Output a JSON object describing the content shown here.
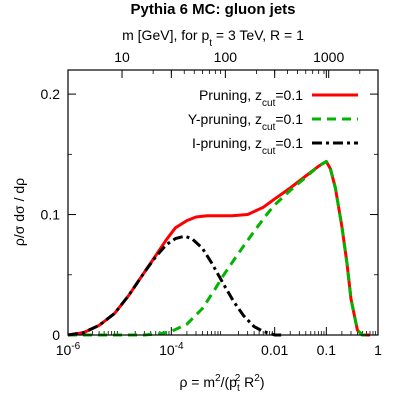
{
  "chart_data": {
    "type": "line",
    "title": "Pythia 6 MC: gluon jets",
    "top_axis_label_html": "m [GeV], for p<tspan baseline-shift=\"sub\" font-size=\"10\">t</tspan> = 3 TeV, R = 1",
    "top_axis_label": "m [GeV], for pt = 3 TeV, R = 1",
    "xlabel": "ρ = m²/(pt² R²)",
    "ylabel": "ρ/σ dσ / dρ",
    "x_scale": "log",
    "xlim": [
      1e-06,
      1
    ],
    "ylim": [
      0,
      0.22
    ],
    "x_ticks": [
      {
        "value": 1e-06,
        "label": "10",
        "exp": "-6"
      },
      {
        "value": 0.0001,
        "label": "10",
        "exp": "-4"
      },
      {
        "value": 0.01,
        "label": "0.01",
        "exp": ""
      },
      {
        "value": 0.1,
        "label": "0.1",
        "exp": ""
      },
      {
        "value": 1,
        "label": "1",
        "exp": ""
      }
    ],
    "y_ticks": [
      {
        "value": 0,
        "label": "0"
      },
      {
        "value": 0.1,
        "label": "0.1"
      },
      {
        "value": 0.2,
        "label": "0.2"
      }
    ],
    "top_ticks": [
      {
        "value": 10,
        "label": "10"
      },
      {
        "value": 100,
        "label": "100"
      },
      {
        "value": 1000,
        "label": "1000"
      }
    ],
    "legend_position": "top-right",
    "series": [
      {
        "name": "Pruning, z",
        "name_sub": "cut",
        "name_tail": "=0.1",
        "color": "#ff0000",
        "style": "solid",
        "x": [
          1e-06,
          2e-06,
          4e-06,
          8e-06,
          1.5e-05,
          3e-05,
          5e-05,
          8e-05,
          0.00012,
          0.0002,
          0.0003,
          0.0005,
          0.0008,
          0.0015,
          0.003,
          0.006,
          0.01,
          0.02,
          0.04,
          0.07,
          0.09,
          0.1,
          0.12,
          0.15,
          0.2,
          0.25,
          0.3,
          0.4,
          0.5,
          0.7
        ],
        "y": [
          0.0,
          0.002,
          0.008,
          0.018,
          0.033,
          0.052,
          0.066,
          0.079,
          0.089,
          0.095,
          0.098,
          0.099,
          0.099,
          0.099,
          0.1,
          0.106,
          0.113,
          0.122,
          0.132,
          0.14,
          0.143,
          0.144,
          0.138,
          0.122,
          0.09,
          0.06,
          0.03,
          0.004,
          0.0,
          0.0
        ]
      },
      {
        "name": "Y-pruning, z",
        "name_sub": "cut",
        "name_tail": "=0.1",
        "color": "#00b400",
        "style": "dashed",
        "x": [
          1e-06,
          1e-05,
          3e-05,
          6e-05,
          0.0001,
          0.0002,
          0.0004,
          0.0007,
          0.001,
          0.002,
          0.004,
          0.007,
          0.01,
          0.02,
          0.04,
          0.07,
          0.09,
          0.1,
          0.12,
          0.15,
          0.2,
          0.25,
          0.3,
          0.4,
          0.5,
          0.7
        ],
        "y": [
          0.0,
          0.0,
          0.0,
          0.001,
          0.003,
          0.009,
          0.022,
          0.038,
          0.049,
          0.068,
          0.086,
          0.1,
          0.108,
          0.12,
          0.131,
          0.14,
          0.143,
          0.144,
          0.138,
          0.122,
          0.09,
          0.06,
          0.03,
          0.004,
          0.0,
          0.0
        ]
      },
      {
        "name": "I-pruning, z",
        "name_sub": "cut",
        "name_tail": "=0.1",
        "color": "#000000",
        "style": "dashdot",
        "x": [
          1e-06,
          2e-06,
          4e-06,
          8e-06,
          1.5e-05,
          3e-05,
          5e-05,
          8e-05,
          0.00012,
          0.00018,
          0.00025,
          0.0004,
          0.0006,
          0.001,
          0.0016,
          0.0025,
          0.004,
          0.006,
          0.01,
          0.015
        ],
        "y": [
          0.0,
          0.002,
          0.008,
          0.018,
          0.033,
          0.052,
          0.065,
          0.075,
          0.08,
          0.082,
          0.08,
          0.072,
          0.06,
          0.043,
          0.028,
          0.016,
          0.007,
          0.003,
          0.0,
          0.0
        ]
      }
    ]
  }
}
